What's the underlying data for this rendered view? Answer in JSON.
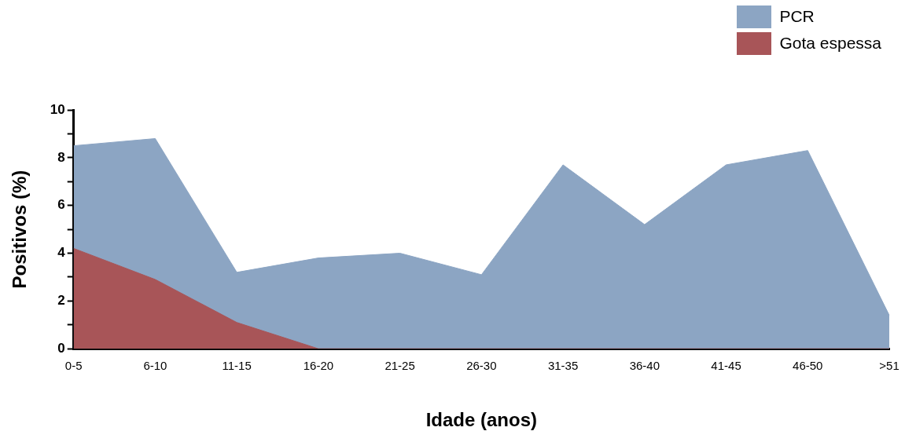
{
  "chart_data": {
    "type": "area",
    "xlabel": "Idade (anos)",
    "ylabel": "Positivos (%)",
    "categories": [
      "0-5",
      "6-10",
      "11-15",
      "16-20",
      "21-25",
      "26-30",
      "31-35",
      "36-40",
      "41-45",
      "46-50",
      ">51"
    ],
    "series": [
      {
        "name": "PCR",
        "color": "#8ca5c3",
        "values": [
          8.5,
          8.8,
          3.2,
          3.8,
          4.0,
          3.1,
          7.7,
          5.2,
          7.7,
          8.3,
          1.4
        ]
      },
      {
        "name": "Gota espessa",
        "color": "#a85558",
        "values": [
          4.2,
          2.9,
          1.1,
          0,
          0,
          0,
          0,
          0,
          0,
          0,
          0
        ]
      }
    ],
    "ylim": [
      0,
      10
    ],
    "yticks": [
      0,
      {
        "value": 1,
        "label": null
      },
      2,
      {
        "value": 3,
        "label": null
      },
      4,
      {
        "value": 5,
        "label": null
      },
      6,
      {
        "value": 7,
        "label": null
      },
      8,
      {
        "value": 9,
        "label": null
      },
      10
    ],
    "grid": false,
    "legend": "top right",
    "marker": "none",
    "line_style": "solid"
  }
}
